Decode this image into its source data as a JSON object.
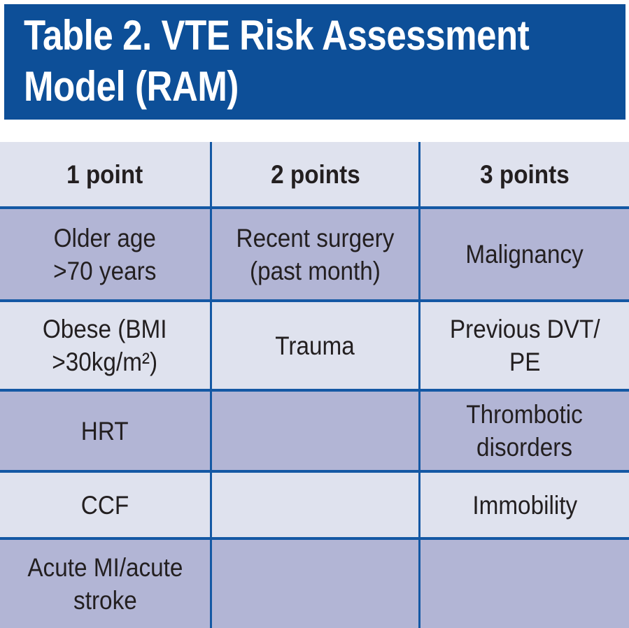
{
  "title": {
    "text": "Table 2. VTE Risk Assessment\nModel (RAM)"
  },
  "colors": {
    "title_background": "#0d4f98",
    "title_text": "#ffffff",
    "row_light": "#dfe2ee",
    "row_dark": "#b2b5d5",
    "grid_line_blue": "#1458a4",
    "cell_text": "#231f20"
  },
  "table": {
    "header": [
      "1 point",
      "2 points",
      "3 points"
    ],
    "rows": [
      {
        "cells": [
          "Older age\n>70 years",
          "Recent surgery\n(past month)",
          "Malignancy"
        ]
      },
      {
        "cells": [
          "Obese (BMI\n>30kg/m²)",
          "Trauma",
          "Previous DVT/\nPE"
        ]
      },
      {
        "cells": [
          "HRT",
          "",
          "Thrombotic\ndisorders"
        ]
      },
      {
        "cells": [
          "CCF",
          "",
          "Immobility"
        ]
      },
      {
        "cells": [
          "Acute MI/acute\nstroke",
          "",
          ""
        ]
      }
    ]
  }
}
